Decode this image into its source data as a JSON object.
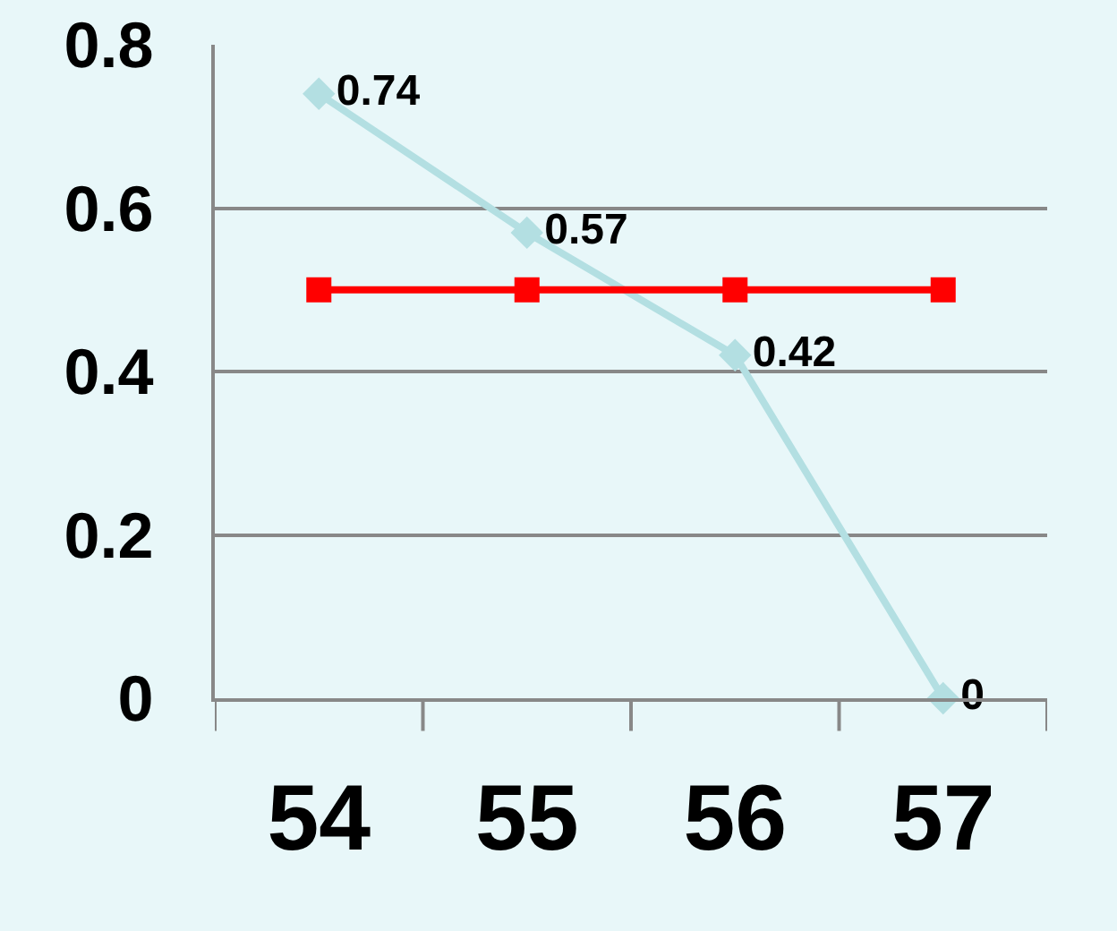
{
  "chart_data": {
    "type": "line",
    "categories": [
      "54",
      "55",
      "56",
      "57"
    ],
    "series": [
      {
        "color": "#b3dfe2",
        "values": [
          0.74,
          0.57,
          0.42,
          0
        ],
        "marker": "diamond",
        "value_labels": [
          "0.74",
          "0.57",
          "0.42",
          "0"
        ]
      },
      {
        "color": "#ff0000",
        "values": [
          0.5,
          0.5,
          0.5,
          0.5
        ],
        "marker": "square"
      }
    ],
    "ylim": [
      0,
      0.8
    ],
    "yticks": [
      0,
      0.2,
      0.4,
      0.6,
      0.8
    ],
    "grid": "y"
  }
}
